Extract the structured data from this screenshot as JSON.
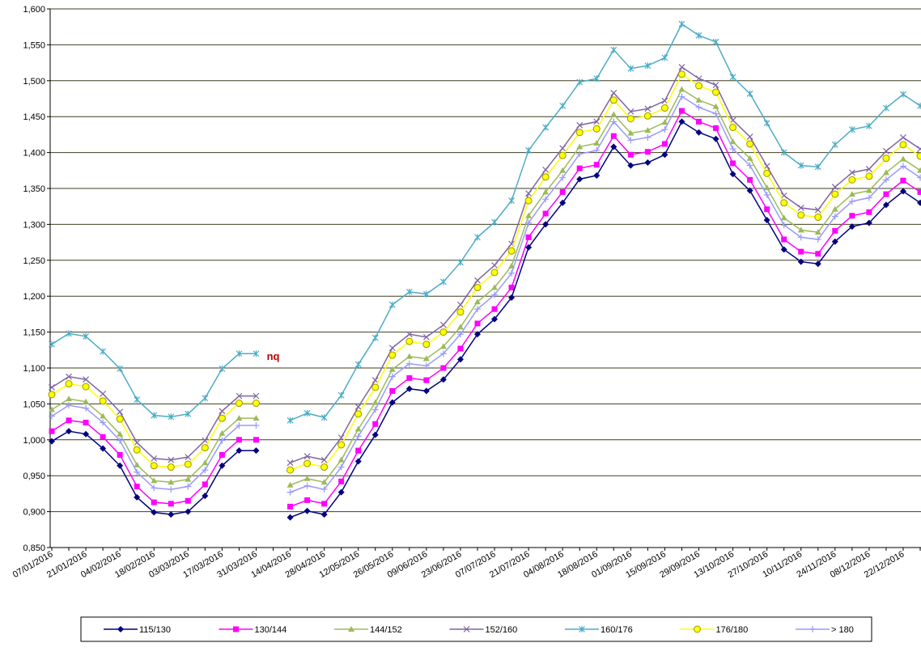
{
  "chart_data": {
    "type": "line",
    "categories": [
      "07/01/2016",
      null,
      "21/01/2016",
      null,
      "04/02/2016",
      null,
      "18/02/2016",
      null,
      "03/03/2016",
      null,
      "17/03/2016",
      null,
      "31/03/2016",
      null,
      "14/04/2016",
      null,
      "28/04/2016",
      null,
      "12/05/2016",
      null,
      "26/05/2016",
      null,
      "09/06/2016",
      null,
      "23/06/2016",
      null,
      "07/07/2016",
      null,
      "21/07/2016",
      null,
      "04/08/2016",
      null,
      "18/08/2016",
      null,
      "01/09/2016",
      null,
      "15/09/2016",
      null,
      "29/09/2016",
      null,
      "13/10/2016",
      null,
      "27/10/2016",
      null,
      "10/11/2016",
      null,
      "24/11/2016",
      null,
      "08/12/2016",
      null,
      "22/12/2016",
      null
    ],
    "series": [
      {
        "name": "115/130",
        "color": "#000080",
        "marker": "diamond",
        "values": [
          0.998,
          1.012,
          1.008,
          0.988,
          0.964,
          0.92,
          0.899,
          0.896,
          0.9,
          0.922,
          0.964,
          0.985,
          0.985,
          null,
          0.892,
          0.901,
          0.896,
          0.927,
          0.97,
          1.007,
          1.052,
          1.071,
          1.068,
          1.084,
          1.112,
          1.147,
          1.168,
          1.198,
          1.268,
          1.3,
          1.33,
          1.363,
          1.368,
          1.408,
          1.382,
          1.386,
          1.397,
          1.443,
          1.428,
          1.419,
          1.37,
          1.347,
          1.306,
          1.265,
          1.248,
          1.245,
          1.276,
          1.297,
          1.302,
          1.327,
          1.346,
          1.33
        ]
      },
      {
        "name": "130/144",
        "color": "#ff00ff",
        "marker": "square",
        "values": [
          1.012,
          1.027,
          1.024,
          1.004,
          0.979,
          0.935,
          0.913,
          0.911,
          0.915,
          0.938,
          0.979,
          1.0,
          1.0,
          null,
          0.907,
          0.916,
          0.911,
          0.942,
          0.985,
          1.022,
          1.068,
          1.086,
          1.083,
          1.1,
          1.127,
          1.162,
          1.182,
          1.212,
          1.282,
          1.315,
          1.345,
          1.378,
          1.383,
          1.423,
          1.397,
          1.401,
          1.412,
          1.458,
          1.443,
          1.434,
          1.385,
          1.362,
          1.321,
          1.279,
          1.262,
          1.259,
          1.291,
          1.312,
          1.317,
          1.342,
          1.361,
          1.345
        ]
      },
      {
        "name": "144/152",
        "color": "#9bbb59",
        "marker": "triangle",
        "values": [
          1.042,
          1.057,
          1.053,
          1.033,
          1.008,
          0.965,
          0.943,
          0.941,
          0.945,
          0.968,
          1.009,
          1.03,
          1.03,
          null,
          0.937,
          0.946,
          0.941,
          0.972,
          1.015,
          1.052,
          1.098,
          1.116,
          1.113,
          1.13,
          1.157,
          1.192,
          1.212,
          1.242,
          1.312,
          1.345,
          1.375,
          1.408,
          1.413,
          1.453,
          1.427,
          1.431,
          1.442,
          1.488,
          1.473,
          1.464,
          1.415,
          1.392,
          1.351,
          1.309,
          1.292,
          1.289,
          1.321,
          1.342,
          1.347,
          1.372,
          1.391,
          1.375
        ]
      },
      {
        "name": "152/160",
        "color": "#8064a2",
        "marker": "x",
        "values": [
          1.073,
          1.088,
          1.084,
          1.064,
          1.039,
          0.996,
          0.974,
          0.972,
          0.976,
          0.999,
          1.04,
          1.061,
          1.061,
          null,
          0.968,
          0.977,
          0.972,
          1.003,
          1.046,
          1.083,
          1.128,
          1.147,
          1.143,
          1.16,
          1.188,
          1.222,
          1.243,
          1.273,
          1.343,
          1.376,
          1.406,
          1.438,
          1.443,
          1.483,
          1.457,
          1.461,
          1.472,
          1.519,
          1.503,
          1.494,
          1.445,
          1.422,
          1.381,
          1.34,
          1.323,
          1.32,
          1.352,
          1.372,
          1.377,
          1.402,
          1.421,
          1.405
        ]
      },
      {
        "name": "160/176",
        "color": "#4bacc6",
        "marker": "star",
        "values": [
          1.133,
          1.148,
          1.144,
          1.123,
          1.099,
          1.056,
          1.034,
          1.032,
          1.036,
          1.058,
          1.099,
          1.12,
          1.12,
          null,
          1.027,
          1.037,
          1.031,
          1.062,
          1.105,
          1.142,
          1.188,
          1.206,
          1.203,
          1.22,
          1.247,
          1.282,
          1.303,
          1.333,
          1.403,
          1.435,
          1.465,
          1.498,
          1.503,
          1.543,
          1.517,
          1.521,
          1.532,
          1.579,
          1.563,
          1.554,
          1.505,
          1.482,
          1.441,
          1.4,
          1.382,
          1.38,
          1.411,
          1.432,
          1.437,
          1.462,
          1.481,
          1.465
        ]
      },
      {
        "name": "176/180",
        "color": "#ffff00",
        "marker": "circle",
        "values": [
          1.063,
          1.078,
          1.074,
          1.054,
          1.029,
          0.986,
          0.964,
          0.962,
          0.966,
          0.989,
          1.03,
          1.051,
          1.051,
          null,
          0.958,
          0.967,
          0.962,
          0.993,
          1.036,
          1.073,
          1.118,
          1.137,
          1.133,
          1.15,
          1.178,
          1.212,
          1.233,
          1.263,
          1.333,
          1.366,
          1.396,
          1.428,
          1.433,
          1.473,
          1.447,
          1.451,
          1.462,
          1.509,
          1.493,
          1.484,
          1.435,
          1.412,
          1.371,
          1.33,
          1.313,
          1.31,
          1.342,
          1.362,
          1.367,
          1.392,
          1.411,
          1.395
        ]
      },
      {
        "name": "> 180",
        "color": "#9999ff",
        "marker": "plus",
        "values": [
          1.033,
          1.048,
          1.044,
          1.024,
          0.999,
          0.955,
          0.933,
          0.931,
          0.935,
          0.958,
          0.999,
          1.02,
          1.02,
          null,
          0.927,
          0.936,
          0.931,
          0.962,
          1.005,
          1.042,
          1.088,
          1.106,
          1.103,
          1.12,
          1.147,
          1.182,
          1.202,
          1.232,
          1.302,
          1.335,
          1.365,
          1.398,
          1.403,
          1.443,
          1.417,
          1.421,
          1.432,
          1.478,
          1.463,
          1.454,
          1.405,
          1.382,
          1.341,
          1.299,
          1.282,
          1.279,
          1.311,
          1.332,
          1.337,
          1.362,
          1.381,
          1.365
        ]
      }
    ],
    "annotation": "nq",
    "ylim": [
      0.85,
      1.6
    ],
    "yticks": [
      {
        "value": 0.85,
        "label": "0,850"
      },
      {
        "value": 0.9,
        "label": "0,900"
      },
      {
        "value": 0.95,
        "label": "0,950"
      },
      {
        "value": 1.0,
        "label": "1,000"
      },
      {
        "value": 1.05,
        "label": "1,050"
      },
      {
        "value": 1.1,
        "label": "1,100"
      },
      {
        "value": 1.15,
        "label": "1,150"
      },
      {
        "value": 1.2,
        "label": "1,200"
      },
      {
        "value": 1.25,
        "label": "1,250"
      },
      {
        "value": 1.3,
        "label": "1,300"
      },
      {
        "value": 1.35,
        "label": "1,350"
      },
      {
        "value": 1.4,
        "label": "1,400"
      },
      {
        "value": 1.45,
        "label": "1,450"
      },
      {
        "value": 1.5,
        "label": "1,500"
      },
      {
        "value": 1.55,
        "label": "1,550"
      },
      {
        "value": 1.6,
        "label": "1,600"
      }
    ],
    "grid": true,
    "legend": "bottom"
  }
}
